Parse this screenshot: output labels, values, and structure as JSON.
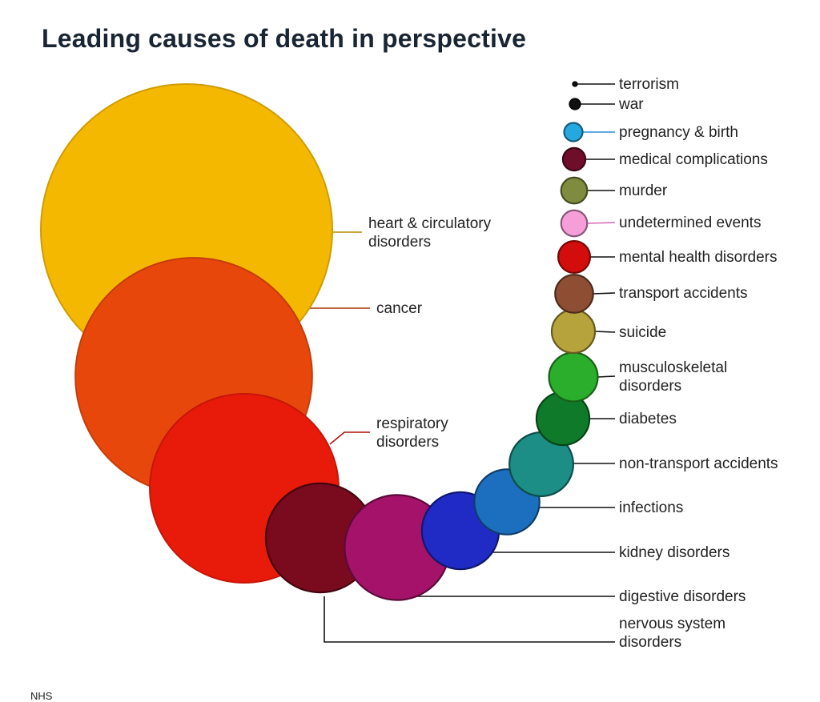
{
  "chart_data": {
    "type": "bubble",
    "title": "Leading causes of death in perspective",
    "source": "NHS",
    "series": [
      {
        "label": "heart & circulatory disorders",
        "color": "#F5B800",
        "magnitude": 100
      },
      {
        "label": "cancer",
        "color": "#E8470C",
        "magnitude": 66
      },
      {
        "label": "respiratory disorders",
        "color": "#E81A0A",
        "magnitude": 42
      },
      {
        "label": "nervous system disorders",
        "color": "#7A0A1E",
        "magnitude": 14
      },
      {
        "label": "digestive disorders",
        "color": "#A5126A",
        "magnitude": 13
      },
      {
        "label": "kidney disorders",
        "color": "#1F2BC4",
        "magnitude": 7
      },
      {
        "label": "infections",
        "color": "#1C6FBE",
        "magnitude": 5
      },
      {
        "label": "non-transport accidents",
        "color": "#1C8E86",
        "magnitude": 4.8
      },
      {
        "label": "diabetes",
        "color": "#0E7A2A",
        "magnitude": 3.3
      },
      {
        "label": "musculoskeletal disorders",
        "color": "#2BAE2B",
        "magnitude": 2.8
      },
      {
        "label": "suicide",
        "color": "#B7A33C",
        "magnitude": 2.2
      },
      {
        "label": "transport accidents",
        "color": "#8E4E33",
        "magnitude": 1.7
      },
      {
        "label": "mental health disorders",
        "color": "#D30C0C",
        "magnitude": 1.2
      },
      {
        "label": "undetermined events",
        "color": "#F59ED8",
        "magnitude": 0.8
      },
      {
        "label": "murder",
        "color": "#7F8B3E",
        "magnitude": 0.8
      },
      {
        "label": "medical complications",
        "color": "#6E0E2A",
        "magnitude": 0.6
      },
      {
        "label": "pregnancy & birth",
        "color": "#25A8E0",
        "magnitude": 0.4
      },
      {
        "label": "war",
        "color": "#111111",
        "magnitude": 0.13
      },
      {
        "label": "terrorism",
        "color": "#111111",
        "magnitude": 0.02
      }
    ]
  }
}
